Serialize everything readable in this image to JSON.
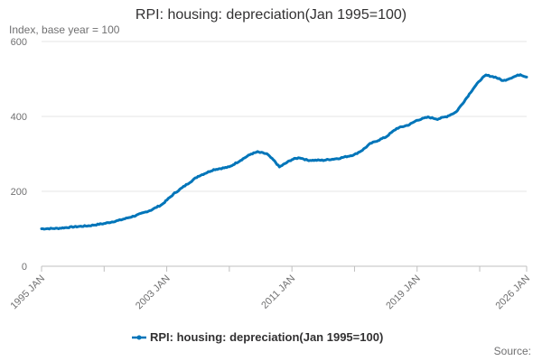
{
  "chart_data": {
    "type": "line",
    "title": "RPI: housing: depreciation(Jan 1995=100)",
    "subtitle": "Index, base year = 100",
    "ylim": [
      0,
      600
    ],
    "yticks": [
      0,
      200,
      400,
      600
    ],
    "xlim": [
      1995.0,
      2026.0
    ],
    "xticks": [
      {
        "label": "1995 JAN",
        "value": 1995.0
      },
      {
        "label": "2003 JAN",
        "value": 2003.0
      },
      {
        "label": "2011 JAN",
        "value": 2011.0
      },
      {
        "label": "2019 JAN",
        "value": 2019.0
      },
      {
        "label": "2026 JAN",
        "value": 2026.0
      }
    ],
    "grid": true,
    "legend_position": "bottom",
    "series": [
      {
        "name": "RPI: housing: depreciation(Jan 1995=100)",
        "color": "#0075b9",
        "points": [
          [
            1995.0,
            100
          ],
          [
            1996.0,
            101
          ],
          [
            1997.0,
            105
          ],
          [
            1998.0,
            108
          ],
          [
            1999.0,
            114
          ],
          [
            2000.0,
            123
          ],
          [
            2001.0,
            135
          ],
          [
            2002.0,
            150
          ],
          [
            2002.7,
            165
          ],
          [
            2003.5,
            195
          ],
          [
            2004.0,
            210
          ],
          [
            2005.0,
            240
          ],
          [
            2006.0,
            258
          ],
          [
            2007.0,
            265
          ],
          [
            2007.8,
            285
          ],
          [
            2008.4,
            300
          ],
          [
            2008.8,
            305
          ],
          [
            2009.4,
            300
          ],
          [
            2009.9,
            280
          ],
          [
            2010.2,
            265
          ],
          [
            2010.6,
            275
          ],
          [
            2011.0,
            285
          ],
          [
            2011.5,
            290
          ],
          [
            2012.0,
            283
          ],
          [
            2013.0,
            283
          ],
          [
            2014.0,
            288
          ],
          [
            2015.0,
            298
          ],
          [
            2015.5,
            310
          ],
          [
            2016.0,
            327
          ],
          [
            2017.0,
            345
          ],
          [
            2017.7,
            368
          ],
          [
            2018.5,
            378
          ],
          [
            2019.0,
            390
          ],
          [
            2019.7,
            398
          ],
          [
            2020.3,
            393
          ],
          [
            2020.9,
            400
          ],
          [
            2021.5,
            412
          ],
          [
            2022.0,
            440
          ],
          [
            2022.6,
            475
          ],
          [
            2023.1,
            500
          ],
          [
            2023.4,
            510
          ],
          [
            2024.0,
            505
          ],
          [
            2024.5,
            495
          ],
          [
            2025.0,
            503
          ],
          [
            2025.6,
            512
          ],
          [
            2026.0,
            505
          ]
        ]
      }
    ]
  },
  "legend": {
    "label": "RPI: housing: depreciation(Jan 1995=100)"
  },
  "source": {
    "label": "Source:"
  }
}
